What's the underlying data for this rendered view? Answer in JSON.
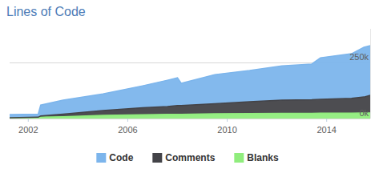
{
  "chart_data": {
    "type": "area",
    "title": "Lines of Code",
    "stacked": true,
    "grid": true,
    "legend": "bottom",
    "x": [
      2001.25,
      2002.4,
      2002.5,
      2003.4,
      2005.0,
      2006.6,
      2007.6,
      2008.0,
      2008.15,
      2009.5,
      2010.9,
      2012.2,
      2013.4,
      2013.75,
      2015.0,
      2015.5,
      2015.75
    ],
    "xlim": [
      2001.25,
      2015.75
    ],
    "xticks": [
      2002,
      2006,
      2010,
      2014
    ],
    "ylim": [
      0,
      400000
    ],
    "yticks": [
      {
        "value": 0,
        "label": "0k"
      },
      {
        "value": 250000,
        "label": "250k"
      }
    ],
    "series": [
      {
        "name": "Code",
        "color": "#7cb5ec",
        "values": [
          14000,
          14000,
          48000,
          62000,
          74000,
          98000,
          117000,
          124000,
          99000,
          130000,
          139000,
          153000,
          159000,
          185000,
          199000,
          222000,
          221000
        ]
      },
      {
        "name": "Comments",
        "color": "#434348",
        "values": [
          2000,
          3000,
          6000,
          12000,
          22000,
          31000,
          35000,
          39000,
          39000,
          45000,
          53000,
          59000,
          61000,
          62000,
          66000,
          71000,
          79000
        ]
      },
      {
        "name": "Blanks",
        "color": "#90ed7d",
        "values": [
          2000,
          3000,
          6000,
          8000,
          14000,
          17000,
          19000,
          19000,
          19000,
          21000,
          22000,
          23000,
          23000,
          24000,
          24000,
          25000,
          25000
        ]
      }
    ]
  }
}
